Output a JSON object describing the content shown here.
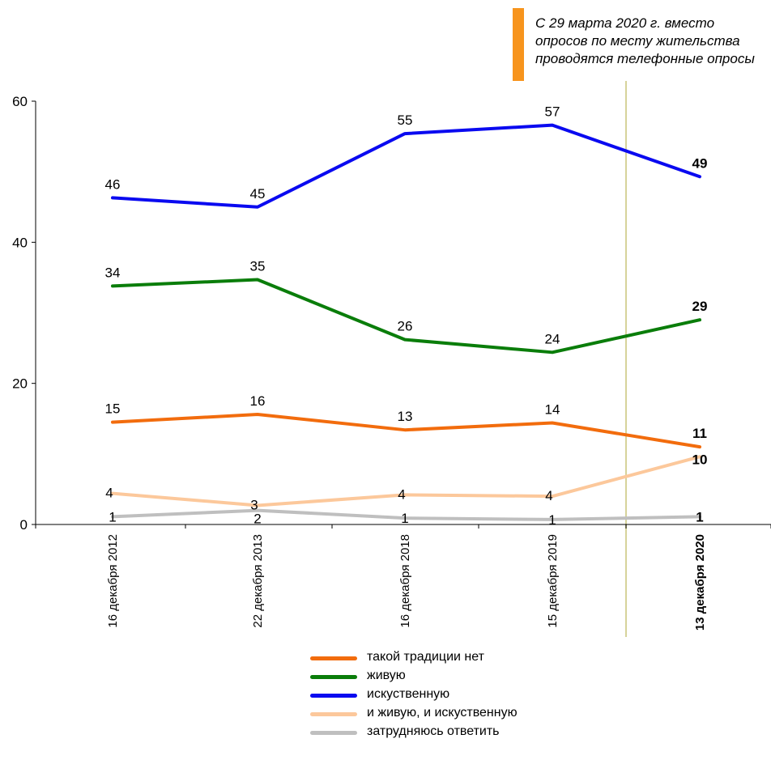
{
  "note": {
    "text": "С 29 марта 2020 г. вместо\nопросов по месту жительства\nпроводятся телефонные опросы",
    "accent_color": "#f7941d"
  },
  "chart_data": {
    "type": "line",
    "categories": [
      "16 декабря 2012",
      "22 декабря 2013",
      "16 декабря 2018",
      "15 декабря 2019",
      "13 декабря 2020"
    ],
    "bold_category": "13 декабря 2020",
    "y_ticks": [
      "0",
      "20",
      "40",
      "60"
    ],
    "ylim": [
      0,
      60
    ],
    "grid": false,
    "divider_between": [
      "15 декабря 2019",
      "13 декабря 2020"
    ],
    "series": [
      {
        "name": "такой традиции нет",
        "color": "#f26c0d",
        "values": [
          14.5,
          15.6,
          13.4,
          14.4,
          11
        ],
        "labels": [
          "15",
          "16",
          "13",
          "14",
          "11"
        ]
      },
      {
        "name": "живую",
        "color": "#0a7d0a",
        "values": [
          33.8,
          34.7,
          26.2,
          24.4,
          29
        ],
        "labels": [
          "34",
          "35",
          "26",
          "24",
          "29"
        ]
      },
      {
        "name": "искуственную",
        "color": "#0a0af0",
        "values": [
          46.3,
          45,
          55.4,
          56.6,
          49.3
        ],
        "labels": [
          "46",
          "45",
          "55",
          "57",
          "49"
        ]
      },
      {
        "name": "и живую, и искуственную",
        "color": "#fcc89b",
        "values": [
          4.4,
          2.7,
          4.2,
          4.0,
          9.6
        ],
        "labels": [
          "4",
          "3",
          "4",
          "4",
          "10"
        ]
      },
      {
        "name": "затрудняюсь ответить",
        "color": "#bfbfbf",
        "values": [
          1.1,
          2.0,
          0.9,
          0.7,
          1.1
        ],
        "labels": [
          "1",
          "2",
          "1",
          "1",
          "1"
        ]
      }
    ]
  }
}
